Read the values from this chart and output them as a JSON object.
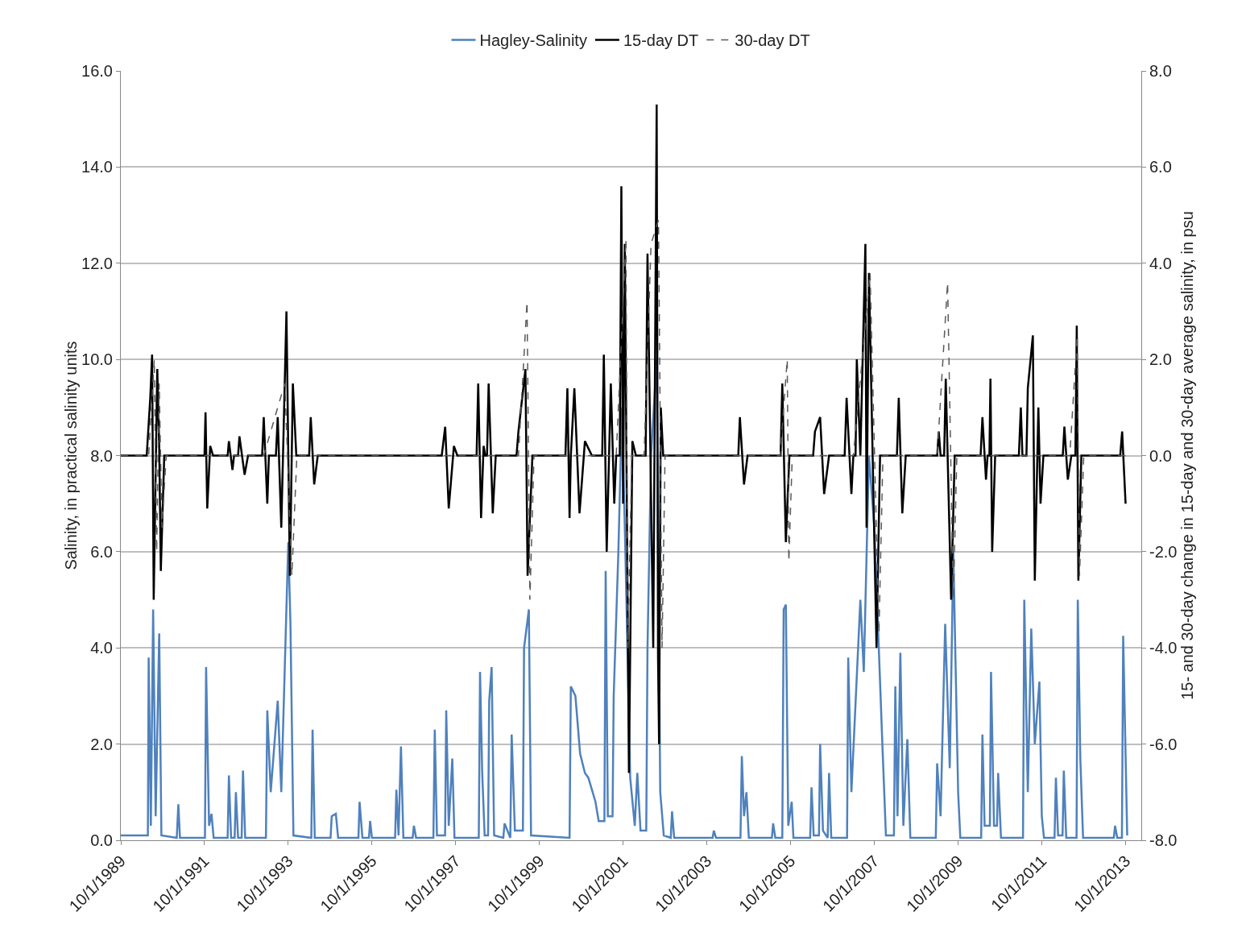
{
  "chart_data": {
    "type": "line",
    "ylabel": "Salinity, in practical salinity units",
    "y2label": "15- and 30-day change in 15-day and 30-day average salinity, in psu",
    "xlim": [
      "1989-10-01",
      "2014-02-15"
    ],
    "xticks": [
      {
        "value": "1989-10-01",
        "label": "10/1/1989"
      },
      {
        "value": "1991-10-01",
        "label": "10/1/1991"
      },
      {
        "value": "1993-10-01",
        "label": "10/1/1993"
      },
      {
        "value": "1995-10-01",
        "label": "10/1/1995"
      },
      {
        "value": "1997-10-01",
        "label": "10/1/1997"
      },
      {
        "value": "1999-10-01",
        "label": "10/1/1999"
      },
      {
        "value": "2001-10-01",
        "label": "10/1/2001"
      },
      {
        "value": "2003-10-01",
        "label": "10/1/2003"
      },
      {
        "value": "2005-10-01",
        "label": "10/1/2005"
      },
      {
        "value": "2007-10-01",
        "label": "10/1/2007"
      },
      {
        "value": "2009-10-01",
        "label": "10/1/2009"
      },
      {
        "value": "2011-10-01",
        "label": "10/1/2011"
      },
      {
        "value": "2013-10-01",
        "label": "10/1/2013"
      }
    ],
    "ylim": [
      0,
      16
    ],
    "yticks": [
      {
        "value": 0,
        "label": "0.0"
      },
      {
        "value": 2,
        "label": "2.0"
      },
      {
        "value": 4,
        "label": "4.0"
      },
      {
        "value": 6,
        "label": "6.0"
      },
      {
        "value": 8,
        "label": "8.0"
      },
      {
        "value": 10,
        "label": "10.0"
      },
      {
        "value": 12,
        "label": "12.0"
      },
      {
        "value": 14,
        "label": "14.0"
      },
      {
        "value": 16,
        "label": "16.0"
      }
    ],
    "y2lim": [
      -8,
      8
    ],
    "y2ticks": [
      {
        "value": -8,
        "label": "-8.0"
      },
      {
        "value": -6,
        "label": "-6.0"
      },
      {
        "value": -4,
        "label": "-4.0"
      },
      {
        "value": -2,
        "label": "-2.0"
      },
      {
        "value": 0,
        "label": "0.0"
      },
      {
        "value": 2,
        "label": "2.0"
      },
      {
        "value": 4,
        "label": "4.0"
      },
      {
        "value": 6,
        "label": "6.0"
      },
      {
        "value": 8,
        "label": "8.0"
      }
    ],
    "grid": "y",
    "legend": "top",
    "marker": "none",
    "series": [
      {
        "name": "Hagley-Salinity",
        "color": "#4f81bd",
        "line_style": "solid",
        "x": [
          "1989-10-01",
          "1990-05-25",
          "1990-06-01",
          "1990-06-20",
          "1990-07-10",
          "1990-08-01",
          "1990-09-01",
          "1990-09-20",
          "1991-02-01",
          "1991-02-15",
          "1991-03-01",
          "1991-10-05",
          "1991-10-15",
          "1991-11-10",
          "1991-12-01",
          "1991-12-20",
          "1992-04-20",
          "1992-05-01",
          "1992-05-20",
          "1992-06-20",
          "1992-07-01",
          "1992-07-20",
          "1992-08-20",
          "1992-09-01",
          "1992-09-20",
          "1993-03-20",
          "1993-04-01",
          "1993-05-01",
          "1993-07-01",
          "1993-08-01",
          "1993-10-01",
          "1993-10-20",
          "1993-11-15",
          "1994-04-20",
          "1994-05-01",
          "1994-05-20",
          "1994-10-05",
          "1994-10-15",
          "1994-11-20",
          "1994-12-10",
          "1995-06-05",
          "1995-06-15",
          "1995-07-10",
          "1995-09-05",
          "1995-09-15",
          "1995-10-01",
          "1996-04-20",
          "1996-05-01",
          "1996-05-20",
          "1996-06-10",
          "1996-07-01",
          "1996-09-20",
          "1996-10-01",
          "1996-10-20",
          "1997-03-20",
          "1997-04-01",
          "1997-04-20",
          "1997-06-30",
          "1997-07-10",
          "1997-08-01",
          "1997-09-01",
          "1997-09-20",
          "1998-04-20",
          "1998-05-01",
          "1998-05-20",
          "1998-06-10",
          "1998-07-10",
          "1998-07-20",
          "1998-08-10",
          "1998-09-01",
          "1998-11-20",
          "1998-12-01",
          "1999-01-20",
          "1999-02-01",
          "1999-03-01",
          "1999-05-10",
          "1999-05-20",
          "1999-07-01",
          "1999-07-20",
          "2000-06-20",
          "2000-07-01",
          "2000-08-10",
          "2000-09-20",
          "2000-11-01",
          "2000-12-01",
          "2001-02-01",
          "2001-03-01",
          "2001-04-20",
          "2001-05-01",
          "2001-05-20",
          "2001-06-30",
          "2001-07-10",
          "2001-08-20",
          "2001-09-20",
          "2001-10-20",
          "2001-12-01",
          "2002-01-10",
          "2002-02-01",
          "2002-03-01",
          "2002-04-20",
          "2002-05-01",
          "2002-06-01",
          "2002-07-20",
          "2002-08-20",
          "2002-09-20",
          "2002-11-20",
          "2002-12-01",
          "2002-12-20",
          "2003-11-20",
          "2003-12-01",
          "2003-12-20",
          "2004-07-20",
          "2004-08-01",
          "2004-08-20",
          "2004-09-10",
          "2004-10-01",
          "2005-04-20",
          "2005-05-01",
          "2005-05-20",
          "2005-07-20",
          "2005-08-01",
          "2005-08-20",
          "2005-09-10",
          "2005-10-10",
          "2005-10-25",
          "2006-03-20",
          "2006-04-01",
          "2006-04-20",
          "2006-06-05",
          "2006-06-15",
          "2006-07-10",
          "2006-08-20",
          "2006-09-01",
          "2006-09-20",
          "2007-02-05",
          "2007-02-15",
          "2007-03-15",
          "2007-06-01",
          "2007-07-01",
          "2007-08-15",
          "2007-10-01",
          "2007-11-01",
          "2007-12-10",
          "2008-01-10",
          "2008-03-20",
          "2008-04-01",
          "2008-04-20",
          "2008-05-15",
          "2008-06-10",
          "2008-07-15",
          "2008-08-10",
          "2009-03-20",
          "2009-04-01",
          "2009-05-01",
          "2009-06-10",
          "2009-07-20",
          "2009-08-20",
          "2009-10-01",
          "2009-10-20",
          "2010-04-20",
          "2010-05-01",
          "2010-05-20",
          "2010-07-05",
          "2010-07-15",
          "2010-08-10",
          "2010-09-05",
          "2010-09-15",
          "2010-10-10",
          "2011-04-20",
          "2011-05-01",
          "2011-06-01",
          "2011-07-01",
          "2011-08-01",
          "2011-09-10",
          "2011-10-01",
          "2011-10-20",
          "2012-01-20",
          "2012-02-01",
          "2012-02-20",
          "2012-03-30",
          "2012-04-10",
          "2012-05-01",
          "2012-07-30",
          "2012-08-10",
          "2012-09-01",
          "2012-09-25",
          "2013-06-20",
          "2013-07-01",
          "2013-07-20",
          "2013-08-30",
          "2013-09-10",
          "2013-10-15"
        ],
        "values": [
          0.1,
          0.1,
          3.8,
          0.3,
          4.8,
          0.5,
          4.3,
          0.1,
          0.05,
          0.75,
          0.05,
          0.05,
          3.6,
          0.3,
          0.55,
          0.05,
          0.05,
          1.35,
          0.05,
          0.05,
          1.0,
          0.05,
          0.05,
          1.45,
          0.05,
          0.05,
          2.7,
          1.0,
          2.9,
          1.0,
          6.2,
          4.5,
          0.1,
          0.05,
          2.3,
          0.05,
          0.05,
          0.5,
          0.55,
          0.05,
          0.05,
          0.8,
          0.05,
          0.05,
          0.4,
          0.05,
          0.05,
          1.05,
          0.1,
          1.95,
          0.05,
          0.05,
          0.3,
          0.05,
          0.05,
          2.3,
          0.1,
          0.1,
          2.7,
          0.3,
          1.7,
          0.05,
          0.05,
          3.5,
          1.4,
          0.1,
          0.1,
          2.9,
          3.6,
          0.1,
          0.05,
          0.35,
          0.05,
          2.2,
          0.2,
          0.2,
          4.0,
          4.8,
          0.1,
          0.05,
          3.2,
          3.0,
          1.8,
          1.4,
          1.3,
          0.8,
          0.4,
          0.4,
          5.6,
          0.5,
          0.5,
          3.0,
          6.0,
          9.0,
          6.0,
          1.3,
          0.3,
          1.4,
          0.2,
          0.2,
          4.0,
          8.0,
          10.0,
          1.0,
          0.1,
          0.05,
          0.6,
          0.05,
          0.05,
          0.2,
          0.05,
          0.05,
          1.75,
          0.5,
          1.0,
          0.05,
          0.05,
          0.35,
          0.05,
          0.05,
          4.8,
          4.9,
          0.3,
          0.8,
          0.05,
          0.05,
          1.1,
          0.1,
          0.1,
          2.0,
          0.2,
          0.05,
          1.4,
          0.05,
          0.05,
          3.8,
          1.0,
          5.0,
          3.5,
          8.0,
          6.5,
          4.5,
          2.0,
          0.1,
          0.1,
          3.2,
          0.5,
          3.9,
          0.3,
          2.1,
          0.05,
          0.05,
          1.6,
          0.5,
          4.5,
          1.5,
          6.0,
          1.0,
          0.05,
          0.05,
          2.2,
          0.3,
          0.3,
          3.5,
          0.3,
          0.3,
          1.4,
          0.05,
          0.05,
          5.0,
          1.0,
          4.4,
          2.0,
          3.3,
          0.5,
          0.05,
          0.05,
          1.3,
          0.1,
          0.1,
          1.45,
          0.05,
          0.05,
          5.0,
          1.7,
          0.05,
          0.05,
          0.3,
          0.05,
          0.05,
          4.25,
          0.1
        ]
      },
      {
        "name": "15-day DT",
        "color": "#000000",
        "line_style": "solid",
        "axis": "y2",
        "x": [
          "1989-10-01",
          "1990-05-15",
          "1990-06-15",
          "1990-07-01",
          "1990-07-15",
          "1990-08-15",
          "1990-09-01",
          "1990-09-15",
          "1990-10-15",
          "1991-10-01",
          "1991-10-10",
          "1991-10-25",
          "1991-11-20",
          "1991-12-15",
          "1992-04-20",
          "1992-05-01",
          "1992-06-01",
          "1992-06-15",
          "1992-07-20",
          "1992-08-01",
          "1992-09-15",
          "1992-10-15",
          "1993-02-15",
          "1993-03-01",
          "1993-04-01",
          "1993-04-15",
          "1993-06-15",
          "1993-07-01",
          "1993-08-01",
          "1993-09-15",
          "1993-10-15",
          "1993-11-10",
          "1993-12-10",
          "1994-04-01",
          "1994-04-15",
          "1994-05-15",
          "1994-06-15",
          "1997-06-01",
          "1997-07-01",
          "1997-08-01",
          "1997-09-15",
          "1997-10-15",
          "1998-04-01",
          "1998-04-15",
          "1998-05-10",
          "1998-06-01",
          "1998-06-15",
          "1998-07-01",
          "1998-07-15",
          "1998-08-20",
          "1998-09-15",
          "1999-03-15",
          "1999-04-01",
          "1999-06-01",
          "1999-06-20",
          "1999-08-01",
          "2000-05-15",
          "2000-06-01",
          "2000-06-20",
          "2000-07-01",
          "2000-08-01",
          "2000-09-15",
          "2000-11-01",
          "2001-01-01",
          "2001-04-01",
          "2001-04-15",
          "2001-05-10",
          "2001-06-15",
          "2001-07-15",
          "2001-08-01",
          "2001-09-01",
          "2001-09-15",
          "2001-09-30",
          "2001-10-15",
          "2001-11-20",
          "2001-12-20",
          "2002-01-20",
          "2002-04-15",
          "2002-05-01",
          "2002-06-20",
          "2002-07-20",
          "2002-08-01",
          "2002-08-10",
          "2002-08-25",
          "2002-09-15",
          "2004-07-01",
          "2004-07-15",
          "2004-08-20",
          "2004-09-20",
          "2005-07-05",
          "2005-07-20",
          "2005-08-20",
          "2005-09-20",
          "2006-04-15",
          "2006-05-01",
          "2006-06-15",
          "2006-07-20",
          "2006-09-01",
          "2007-01-15",
          "2007-02-01",
          "2007-03-15",
          "2007-04-01",
          "2007-04-20",
          "2007-05-01",
          "2007-06-01",
          "2007-07-15",
          "2007-07-25",
          "2007-08-15",
          "2007-10-20",
          "2007-11-20",
          "2008-04-15",
          "2008-05-01",
          "2008-06-01",
          "2008-07-01",
          "2009-04-01",
          "2009-04-15",
          "2009-05-01",
          "2009-06-01",
          "2009-06-15",
          "2009-08-01",
          "2009-09-01",
          "2010-04-15",
          "2010-05-01",
          "2010-06-01",
          "2010-06-15",
          "2010-07-01",
          "2010-07-10",
          "2010-07-25",
          "2010-08-20",
          "2011-03-15",
          "2011-04-01",
          "2011-04-15",
          "2011-05-20",
          "2011-06-01",
          "2011-07-15",
          "2011-08-01",
          "2011-09-01",
          "2011-09-20",
          "2011-10-15",
          "2012-04-01",
          "2012-04-15",
          "2012-05-15",
          "2012-06-15",
          "2012-07-20",
          "2012-08-01",
          "2012-08-15",
          "2012-09-10",
          "2013-08-15",
          "2013-09-01",
          "2013-10-01"
        ],
        "values": [
          0,
          0,
          1.2,
          2.1,
          -3.0,
          1.8,
          0.2,
          -2.4,
          0,
          0,
          0.9,
          -1.1,
          0.2,
          0,
          0,
          0.3,
          -0.3,
          0,
          0,
          0.4,
          -0.4,
          0,
          0,
          0.8,
          -1.0,
          0,
          0,
          0.8,
          -1.5,
          3.0,
          -2.5,
          1.5,
          0,
          0,
          0.8,
          -0.6,
          0,
          0,
          0.6,
          -1.1,
          0.2,
          0,
          0,
          1.5,
          -1.3,
          0.2,
          0,
          0,
          1.5,
          -1.2,
          0,
          0,
          0.5,
          1.8,
          -2.5,
          0,
          0,
          1.4,
          -1.3,
          0,
          1.4,
          -1.2,
          0.3,
          0,
          0,
          2.1,
          -2.0,
          1.5,
          -1.0,
          0,
          0,
          5.6,
          -1.0,
          4.4,
          -6.6,
          0.3,
          0,
          0,
          4.2,
          -4.0,
          7.3,
          -4.2,
          -6.0,
          1.0,
          0,
          0,
          0.8,
          -0.6,
          0,
          0,
          1.5,
          -1.8,
          0,
          0,
          0.5,
          0.8,
          -0.8,
          0,
          0,
          1.2,
          -0.8,
          0,
          0,
          2.0,
          0,
          4.4,
          -1.5,
          3.8,
          -4.0,
          0,
          0,
          1.2,
          -1.2,
          0,
          0,
          0.5,
          0,
          0,
          1.6,
          -3.0,
          0,
          0,
          0.8,
          -0.5,
          0,
          0,
          1.6,
          -2.0,
          0,
          0,
          1.0,
          0,
          0,
          1.4,
          2.5,
          -2.6,
          1.0,
          -1.0,
          0,
          0,
          0.6,
          -0.5,
          0,
          0,
          2.7,
          -2.6,
          0,
          0,
          0.5,
          -1.0
        ]
      },
      {
        "name": "30-day DT",
        "color": "#595959",
        "line_style": "dashed",
        "axis": "y2",
        "x": [
          "1989-10-01",
          "1990-06-01",
          "1990-07-20",
          "1990-08-10",
          "1990-09-01",
          "1990-09-25",
          "1990-11-01",
          "1993-03-01",
          "1993-07-01",
          "1993-09-01",
          "1993-11-01",
          "1993-12-15",
          "1999-04-01",
          "1999-06-15",
          "1999-07-10",
          "1999-08-15",
          "2001-08-01",
          "2001-10-25",
          "2001-11-10",
          "2001-12-15",
          "2002-04-01",
          "2002-06-01",
          "2002-08-05",
          "2002-09-05",
          "2002-10-01",
          "2005-07-01",
          "2005-09-01",
          "2005-09-15",
          "2005-10-15",
          "2007-04-01",
          "2007-08-25",
          "2007-11-10",
          "2007-12-15",
          "2009-04-01",
          "2009-07-01",
          "2009-08-20",
          "2009-09-20",
          "2012-06-01",
          "2012-08-05",
          "2012-08-25",
          "2012-10-01",
          "2013-10-15"
        ],
        "values": [
          0,
          0,
          2.0,
          -2.0,
          1.5,
          -1.5,
          0,
          0,
          1.0,
          1.5,
          -2.5,
          0,
          0,
          3.2,
          -3.0,
          0,
          0,
          4.5,
          -4.0,
          0,
          0,
          4.4,
          4.9,
          -4.0,
          0,
          0,
          2.0,
          -2.2,
          0,
          0,
          3.8,
          -3.7,
          0,
          0,
          3.6,
          -3.0,
          0,
          0,
          2.5,
          -2.5,
          0,
          0
        ]
      }
    ]
  }
}
